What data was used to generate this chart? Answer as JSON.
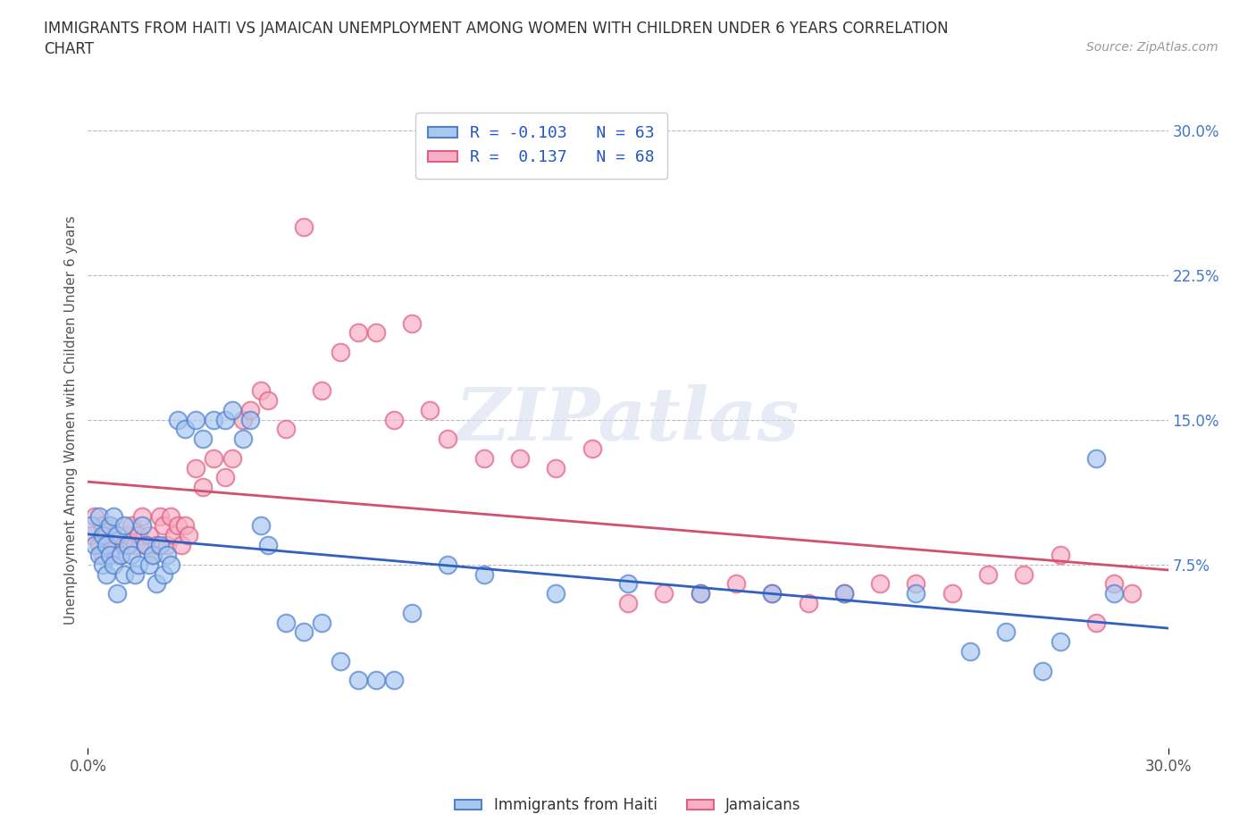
{
  "title_line1": "IMMIGRANTS FROM HAITI VS JAMAICAN UNEMPLOYMENT AMONG WOMEN WITH CHILDREN UNDER 6 YEARS CORRELATION",
  "title_line2": "CHART",
  "source": "Source: ZipAtlas.com",
  "ylabel": "Unemployment Among Women with Children Under 6 years",
  "xlim": [
    0.0,
    0.3
  ],
  "ylim": [
    -0.02,
    0.32
  ],
  "ytick_labels": [
    "7.5%",
    "15.0%",
    "22.5%",
    "30.0%"
  ],
  "ytick_vals": [
    0.075,
    0.15,
    0.225,
    0.3
  ],
  "xtick_vals": [
    0.0,
    0.3
  ],
  "xtick_labels": [
    "0.0%",
    "30.0%"
  ],
  "grid_yticks": [
    0.075,
    0.15,
    0.225,
    0.3
  ],
  "haiti_color": "#a8c8f0",
  "jamaican_color": "#f8b0c8",
  "haiti_edge_color": "#5080d0",
  "jamaican_edge_color": "#e06080",
  "haiti_line_color": "#3060c0",
  "jamaican_line_color": "#d05070",
  "haiti_R": -0.103,
  "haiti_N": 63,
  "jamaican_R": 0.137,
  "jamaican_N": 68,
  "haiti_scatter_x": [
    0.001,
    0.002,
    0.003,
    0.003,
    0.004,
    0.004,
    0.005,
    0.005,
    0.006,
    0.006,
    0.007,
    0.007,
    0.008,
    0.008,
    0.009,
    0.01,
    0.01,
    0.011,
    0.012,
    0.013,
    0.014,
    0.015,
    0.016,
    0.017,
    0.018,
    0.019,
    0.02,
    0.021,
    0.022,
    0.023,
    0.025,
    0.027,
    0.03,
    0.032,
    0.035,
    0.038,
    0.04,
    0.043,
    0.045,
    0.048,
    0.05,
    0.055,
    0.06,
    0.065,
    0.07,
    0.075,
    0.08,
    0.085,
    0.09,
    0.1,
    0.11,
    0.13,
    0.15,
    0.17,
    0.19,
    0.21,
    0.23,
    0.245,
    0.255,
    0.265,
    0.27,
    0.28,
    0.285
  ],
  "haiti_scatter_y": [
    0.095,
    0.085,
    0.1,
    0.08,
    0.09,
    0.075,
    0.085,
    0.07,
    0.095,
    0.08,
    0.075,
    0.1,
    0.09,
    0.06,
    0.08,
    0.095,
    0.07,
    0.085,
    0.08,
    0.07,
    0.075,
    0.095,
    0.085,
    0.075,
    0.08,
    0.065,
    0.085,
    0.07,
    0.08,
    0.075,
    0.15,
    0.145,
    0.15,
    0.14,
    0.15,
    0.15,
    0.155,
    0.14,
    0.15,
    0.095,
    0.085,
    0.045,
    0.04,
    0.045,
    0.025,
    0.015,
    0.015,
    0.015,
    0.05,
    0.075,
    0.07,
    0.06,
    0.065,
    0.06,
    0.06,
    0.06,
    0.06,
    0.03,
    0.04,
    0.02,
    0.035,
    0.13,
    0.06
  ],
  "jamaican_scatter_x": [
    0.001,
    0.002,
    0.003,
    0.004,
    0.004,
    0.005,
    0.006,
    0.007,
    0.008,
    0.009,
    0.01,
    0.011,
    0.012,
    0.013,
    0.014,
    0.015,
    0.016,
    0.017,
    0.018,
    0.019,
    0.02,
    0.021,
    0.022,
    0.023,
    0.024,
    0.025,
    0.026,
    0.027,
    0.028,
    0.03,
    0.032,
    0.035,
    0.038,
    0.04,
    0.043,
    0.045,
    0.048,
    0.05,
    0.055,
    0.06,
    0.065,
    0.07,
    0.075,
    0.08,
    0.085,
    0.09,
    0.095,
    0.1,
    0.11,
    0.12,
    0.13,
    0.14,
    0.15,
    0.16,
    0.17,
    0.18,
    0.19,
    0.2,
    0.21,
    0.22,
    0.23,
    0.24,
    0.25,
    0.26,
    0.27,
    0.28,
    0.285,
    0.29
  ],
  "jamaican_scatter_y": [
    0.09,
    0.1,
    0.085,
    0.095,
    0.08,
    0.09,
    0.095,
    0.085,
    0.09,
    0.08,
    0.085,
    0.09,
    0.095,
    0.085,
    0.09,
    0.1,
    0.085,
    0.09,
    0.08,
    0.085,
    0.1,
    0.095,
    0.085,
    0.1,
    0.09,
    0.095,
    0.085,
    0.095,
    0.09,
    0.125,
    0.115,
    0.13,
    0.12,
    0.13,
    0.15,
    0.155,
    0.165,
    0.16,
    0.145,
    0.25,
    0.165,
    0.185,
    0.195,
    0.195,
    0.15,
    0.2,
    0.155,
    0.14,
    0.13,
    0.13,
    0.125,
    0.135,
    0.055,
    0.06,
    0.06,
    0.065,
    0.06,
    0.055,
    0.06,
    0.065,
    0.065,
    0.06,
    0.07,
    0.07,
    0.08,
    0.045,
    0.065,
    0.06
  ]
}
